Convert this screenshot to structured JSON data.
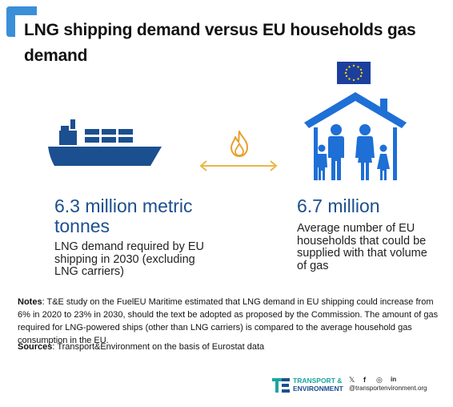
{
  "title": "LNG shipping demand versus EU households gas demand",
  "colors": {
    "accent": "#3b8ed8",
    "ship_blue": "#1c4f8f",
    "house_blue": "#1e6fd6",
    "arrow": "#e8b84a",
    "flame": "#e8a02f",
    "eu_flag": "#1c3f9e",
    "eu_stars": "#f5d000"
  },
  "icons": {
    "corner": "corner-bracket-icon",
    "ship": "cargo-ship-icon",
    "flame": "gas-flame-icon",
    "arrow": "double-arrow-icon",
    "flag": "eu-flag-icon",
    "house": "family-house-icon"
  },
  "left": {
    "value": "6.3 million metric tonnes",
    "description": "LNG demand required by EU shipping in 2030 (excluding LNG carriers)"
  },
  "right": {
    "value": "6.7 million",
    "description": "Average number of EU households that could be supplied with that volume of gas"
  },
  "notes": {
    "label": "Notes",
    "text": ": T&E study on the FuelEU Maritime estimated that LNG demand in EU shipping could increase from 6% in 2020 to 23% in 2030, should the text be adopted as proposed by the Commission. The amount of gas required for LNG-powered ships (other than LNG carriers) is compared to the average household gas consumption in the EU."
  },
  "sources": {
    "label": "Sources",
    "text": ": Transport&Environment on the basis of Eurostat data"
  },
  "footer": {
    "org_line1": "TRANSPORT &",
    "org_line2": "ENVIRONMENT",
    "website": "@transportenvironment.org",
    "social_icons": [
      "twitter-icon",
      "facebook-icon",
      "instagram-icon",
      "linkedin-icon"
    ]
  }
}
